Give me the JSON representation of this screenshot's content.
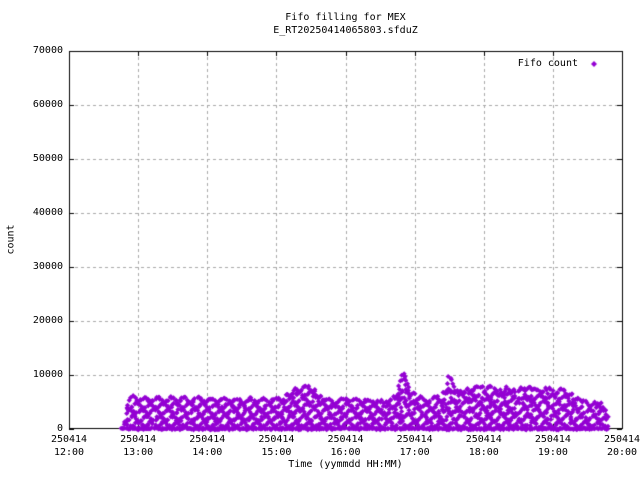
{
  "chart_data": {
    "type": "scatter",
    "title": "Fifo filling for MEX",
    "subtitle": "E_RT20250414065803.sfduZ",
    "xlabel": "Time (yymmdd HH:MM)",
    "ylabel": "count",
    "ylim": [
      0,
      70000
    ],
    "yticks": [
      0,
      10000,
      20000,
      30000,
      40000,
      50000,
      60000,
      70000
    ],
    "xticks": [
      {
        "date": "250414",
        "time": "12:00",
        "minutes": 0
      },
      {
        "date": "250414",
        "time": "13:00",
        "minutes": 60
      },
      {
        "date": "250414",
        "time": "14:00",
        "minutes": 120
      },
      {
        "date": "250414",
        "time": "15:00",
        "minutes": 180
      },
      {
        "date": "250414",
        "time": "16:00",
        "minutes": 240
      },
      {
        "date": "250414",
        "time": "17:00",
        "minutes": 300
      },
      {
        "date": "250414",
        "time": "18:00",
        "minutes": 360
      },
      {
        "date": "250414",
        "time": "19:00",
        "minutes": 420
      },
      {
        "date": "250414",
        "time": "20:00",
        "minutes": 480
      }
    ],
    "grid": true,
    "legend_position": "top-right-inside",
    "x_axis_span_minutes": [
      0,
      480
    ],
    "series": [
      {
        "name": "Fifo count",
        "color": "#9400D3",
        "marker": "filled-diamond",
        "style": "dense oscillating fill-level band from ~0 up to envelope, plus solid line of points at 0",
        "x_unit": "minutes after 250414 12:00",
        "data_start_minutes": 46,
        "data_end_minutes": 468,
        "band_envelope": [
          [
            46,
            300
          ],
          [
            48,
            800
          ],
          [
            50,
            4800
          ],
          [
            53,
            6300
          ],
          [
            58,
            6700
          ],
          [
            65,
            6200
          ],
          [
            75,
            6450
          ],
          [
            85,
            6100
          ],
          [
            95,
            6500
          ],
          [
            105,
            6200
          ],
          [
            115,
            6350
          ],
          [
            125,
            6000
          ],
          [
            135,
            6250
          ],
          [
            145,
            5950
          ],
          [
            155,
            6150
          ],
          [
            165,
            5900
          ],
          [
            175,
            6100
          ],
          [
            183,
            6300
          ],
          [
            190,
            7200
          ],
          [
            197,
            8200
          ],
          [
            205,
            8500
          ],
          [
            212,
            8100
          ],
          [
            218,
            7200
          ],
          [
            224,
            6200
          ],
          [
            230,
            5600
          ],
          [
            237,
            6100
          ],
          [
            243,
            6400
          ],
          [
            250,
            6000
          ],
          [
            256,
            6300
          ],
          [
            262,
            5700
          ],
          [
            268,
            6000
          ],
          [
            273,
            5400
          ],
          [
            278,
            6300
          ],
          [
            283,
            7000
          ],
          [
            287,
            8800
          ],
          [
            290,
            12200
          ],
          [
            293,
            10500
          ],
          [
            296,
            8300
          ],
          [
            300,
            6900
          ],
          [
            306,
            6300
          ],
          [
            312,
            6100
          ],
          [
            318,
            6400
          ],
          [
            323,
            6800
          ],
          [
            326,
            7500
          ],
          [
            329,
            10600
          ],
          [
            332,
            9400
          ],
          [
            336,
            8200
          ],
          [
            343,
            8000
          ],
          [
            351,
            8300
          ],
          [
            359,
            8100
          ],
          [
            367,
            8350
          ],
          [
            375,
            8050
          ],
          [
            383,
            8250
          ],
          [
            391,
            8000
          ],
          [
            399,
            8200
          ],
          [
            407,
            7900
          ],
          [
            415,
            8150
          ],
          [
            423,
            7800
          ],
          [
            430,
            8000
          ],
          [
            436,
            7200
          ],
          [
            441,
            6300
          ],
          [
            446,
            5600
          ],
          [
            451,
            5100
          ],
          [
            456,
            5600
          ],
          [
            461,
            5900
          ],
          [
            464,
            5200
          ],
          [
            466,
            4200
          ],
          [
            468,
            2500
          ]
        ]
      }
    ],
    "colors": {
      "point": "#9400D3",
      "grid": "#a8a8a8",
      "border": "#000000",
      "text": "#000000",
      "background": "#ffffff"
    }
  }
}
